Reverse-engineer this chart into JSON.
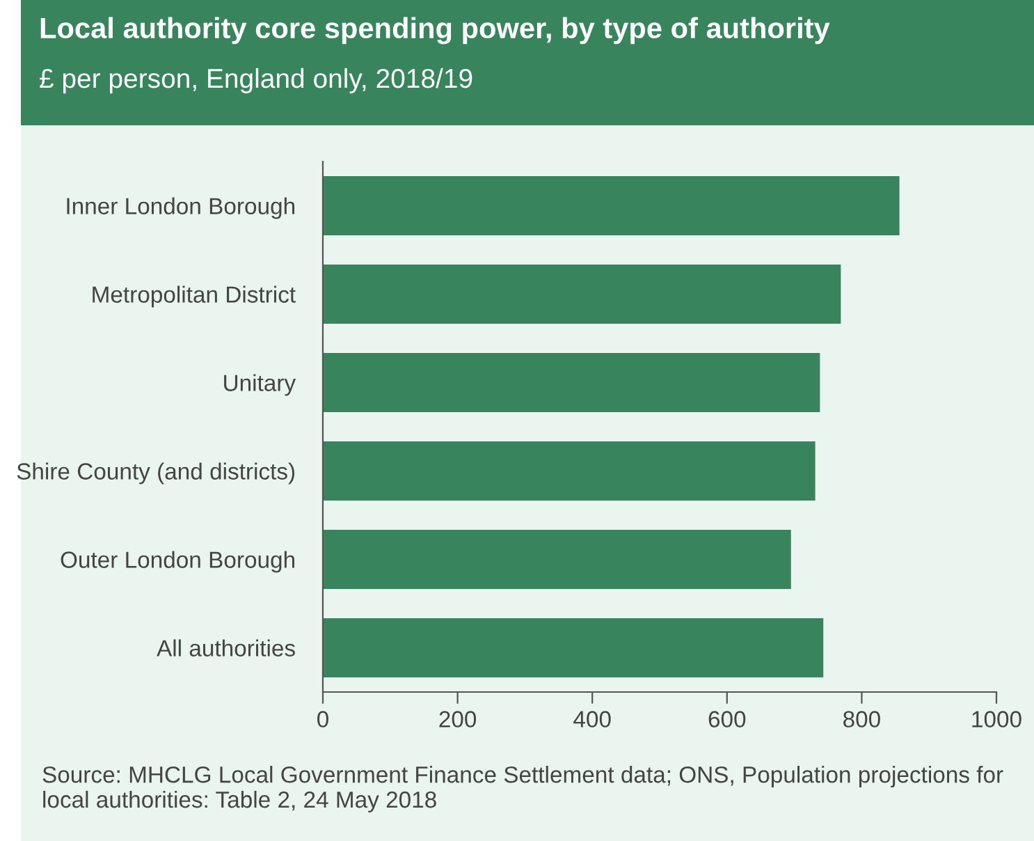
{
  "chart_data": {
    "type": "bar",
    "orientation": "horizontal",
    "title": "Local authority core spending power, by type of authority",
    "subtitle": "£ per person, England only, 2018/19",
    "categories": [
      "Inner London Borough",
      "Metropolitan District",
      "Unitary",
      "Shire County (and districts)",
      "Outer London Borough",
      "All authorities"
    ],
    "values": [
      856,
      769,
      738,
      731,
      695,
      743
    ],
    "color": "#38845c",
    "xlim": [
      0,
      1000
    ],
    "xticks": [
      0,
      200,
      400,
      600,
      800,
      1000
    ],
    "grid": false,
    "legend": false,
    "annotations": [
      "Source: MHCLG Local Government Finance Settlement data; ONS, Population projections for local authorities: Table 2, 24 May 2018"
    ]
  }
}
